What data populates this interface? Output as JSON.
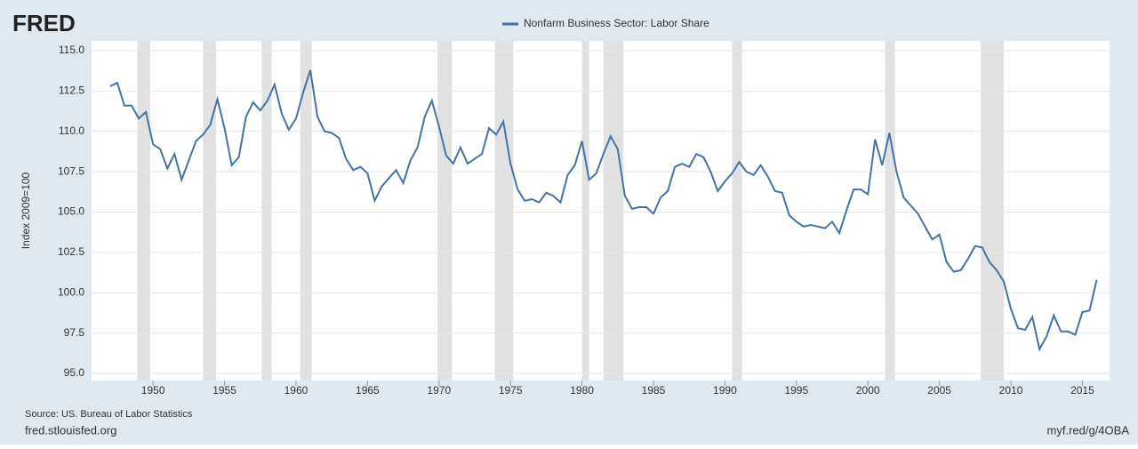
{
  "chart_data": {
    "type": "line",
    "brand": "FRED",
    "y_label": "Index 2009=100",
    "source": "Source: US. Bureau of Labor Statistics",
    "site": "fred.stlouisfed.org",
    "short_url": "myf.red/g/4OBA",
    "x": [
      1947.0,
      1947.5,
      1948.0,
      1948.5,
      1949.0,
      1949.5,
      1950.0,
      1950.5,
      1951.0,
      1951.5,
      1952.0,
      1952.5,
      1953.0,
      1953.5,
      1954.0,
      1954.5,
      1955.0,
      1955.5,
      1956.0,
      1956.5,
      1957.0,
      1957.5,
      1958.0,
      1958.5,
      1959.0,
      1959.5,
      1960.0,
      1960.5,
      1961.0,
      1961.5,
      1962.0,
      1962.5,
      1963.0,
      1963.5,
      1964.0,
      1964.5,
      1965.0,
      1965.5,
      1966.0,
      1966.5,
      1967.0,
      1967.5,
      1968.0,
      1968.5,
      1969.0,
      1969.5,
      1970.0,
      1970.5,
      1971.0,
      1971.5,
      1972.0,
      1972.5,
      1973.0,
      1973.5,
      1974.0,
      1974.5,
      1975.0,
      1975.5,
      1976.0,
      1976.5,
      1977.0,
      1977.5,
      1978.0,
      1978.5,
      1979.0,
      1979.5,
      1980.0,
      1980.5,
      1981.0,
      1981.5,
      1982.0,
      1982.5,
      1983.0,
      1983.5,
      1984.0,
      1984.5,
      1985.0,
      1985.5,
      1986.0,
      1986.5,
      1987.0,
      1987.5,
      1988.0,
      1988.5,
      1989.0,
      1989.5,
      1990.0,
      1990.5,
      1991.0,
      1991.5,
      1992.0,
      1992.5,
      1993.0,
      1993.5,
      1994.0,
      1994.5,
      1995.0,
      1995.5,
      1996.0,
      1996.5,
      1997.0,
      1997.5,
      1998.0,
      1998.5,
      1999.0,
      1999.5,
      2000.0,
      2000.5,
      2001.0,
      2001.5,
      2002.0,
      2002.5,
      2003.0,
      2003.5,
      2004.0,
      2004.5,
      2005.0,
      2005.5,
      2006.0,
      2006.5,
      2007.0,
      2007.5,
      2008.0,
      2008.5,
      2009.0,
      2009.5,
      2010.0,
      2010.5,
      2011.0,
      2011.5,
      2012.0,
      2012.5,
      2013.0,
      2013.5,
      2014.0,
      2014.5,
      2015.0,
      2015.5,
      2016.0
    ],
    "series": [
      {
        "name": "Nonfarm Business Sector: Labor Share",
        "color": "#4572a7",
        "values": [
          112.8,
          113.0,
          111.6,
          111.6,
          110.8,
          111.2,
          109.2,
          108.9,
          107.7,
          108.6,
          107.0,
          108.2,
          109.4,
          109.8,
          110.4,
          112.0,
          110.2,
          107.9,
          108.4,
          110.9,
          111.8,
          111.3,
          111.9,
          112.9,
          111.1,
          110.1,
          110.8,
          112.4,
          113.8,
          110.9,
          110.0,
          109.9,
          109.6,
          108.3,
          107.6,
          107.8,
          107.4,
          105.7,
          106.6,
          107.1,
          107.6,
          106.8,
          108.2,
          109.0,
          110.9,
          111.9,
          110.3,
          108.5,
          108.0,
          109.0,
          108.0,
          108.3,
          108.6,
          110.2,
          109.8,
          110.6,
          108.0,
          106.4,
          105.7,
          105.8,
          105.6,
          106.2,
          106.0,
          105.6,
          107.3,
          107.9,
          109.4,
          107.0,
          107.4,
          108.6,
          109.7,
          108.9,
          106.0,
          105.2,
          105.3,
          105.3,
          104.9,
          105.9,
          106.3,
          107.8,
          108.0,
          107.8,
          108.6,
          108.4,
          107.5,
          106.3,
          106.9,
          107.4,
          108.1,
          107.5,
          107.3,
          107.9,
          107.2,
          106.3,
          106.2,
          104.8,
          104.4,
          104.1,
          104.2,
          104.1,
          104.0,
          104.4,
          103.7,
          105.1,
          106.4,
          106.4,
          106.1,
          109.5,
          107.9,
          109.9,
          107.5,
          105.9,
          105.4,
          104.9,
          104.1,
          103.3,
          103.6,
          101.9,
          101.3,
          101.4,
          102.1,
          102.9,
          102.8,
          101.9,
          101.4,
          100.7,
          99.0,
          97.8,
          97.7,
          98.5,
          96.5,
          97.3,
          98.6,
          97.6,
          97.6,
          97.4,
          98.8,
          98.9,
          100.8
        ]
      }
    ],
    "recessions": [
      [
        1948.9,
        1949.8
      ],
      [
        1953.5,
        1954.4
      ],
      [
        1957.6,
        1958.3
      ],
      [
        1960.3,
        1961.1
      ],
      [
        1969.9,
        1970.9
      ],
      [
        1973.9,
        1975.2
      ],
      [
        1980.0,
        1980.5
      ],
      [
        1981.5,
        1982.9
      ],
      [
        1990.5,
        1991.2
      ],
      [
        2001.2,
        2001.9
      ],
      [
        2007.9,
        2009.5
      ]
    ],
    "xlim": [
      1945.7,
      2016.9
    ],
    "xticks": [
      1950,
      1955,
      1960,
      1965,
      1970,
      1975,
      1980,
      1985,
      1990,
      1995,
      2000,
      2005,
      2010,
      2015
    ],
    "ylim": [
      95,
      115
    ],
    "yticks": [
      {
        "value": 95,
        "label": "95.0"
      },
      {
        "value": 97.5,
        "label": "97.5"
      },
      {
        "value": 100,
        "label": "100.0"
      },
      {
        "value": 102.5,
        "label": "102.5"
      },
      {
        "value": 105,
        "label": "105.0"
      },
      {
        "value": 107.5,
        "label": "107.5"
      },
      {
        "value": 110,
        "label": "110.0"
      },
      {
        "value": 112.5,
        "label": "112.5"
      },
      {
        "value": 115,
        "label": "115.0"
      }
    ],
    "grid": true
  }
}
